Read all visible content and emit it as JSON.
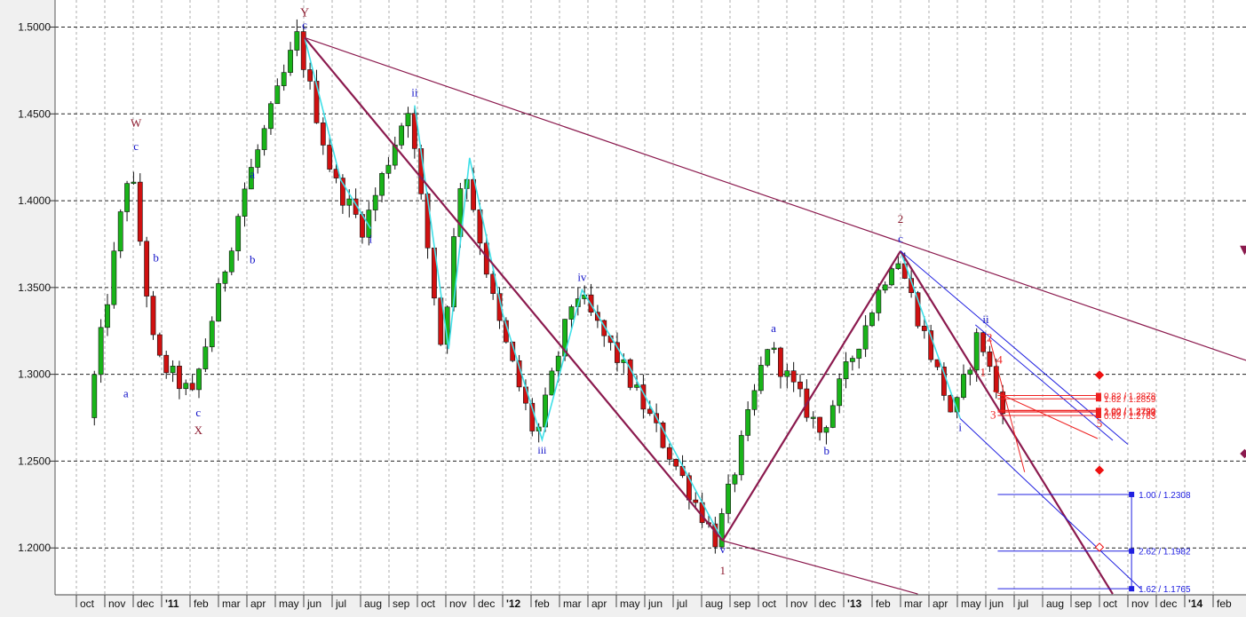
{
  "chart_data": {
    "type": "candlestick",
    "title": "",
    "xlabel": "",
    "ylabel": "",
    "ylim": [
      1.173,
      1.5156
    ],
    "grid": true,
    "y_ticks": [
      "1.2000",
      "1.2500",
      "1.3000",
      "1.3500",
      "1.4000",
      "1.4500",
      "1.5000"
    ],
    "x_labels": [
      {
        "i": 0,
        "label": "oct"
      },
      {
        "i": 1,
        "label": "nov"
      },
      {
        "i": 2,
        "label": "dec"
      },
      {
        "i": 3,
        "label": "'11",
        "year": true
      },
      {
        "i": 4,
        "label": "feb"
      },
      {
        "i": 5,
        "label": "mar"
      },
      {
        "i": 6,
        "label": "apr"
      },
      {
        "i": 7,
        "label": "may"
      },
      {
        "i": 8,
        "label": "jun"
      },
      {
        "i": 9,
        "label": "jul"
      },
      {
        "i": 10,
        "label": "aug"
      },
      {
        "i": 11,
        "label": "sep"
      },
      {
        "i": 12,
        "label": "oct"
      },
      {
        "i": 13,
        "label": "nov"
      },
      {
        "i": 14,
        "label": "dec"
      },
      {
        "i": 15,
        "label": "'12",
        "year": true
      },
      {
        "i": 16,
        "label": "feb"
      },
      {
        "i": 17,
        "label": "mar"
      },
      {
        "i": 18,
        "label": "apr"
      },
      {
        "i": 19,
        "label": "may"
      },
      {
        "i": 20,
        "label": "jun"
      },
      {
        "i": 21,
        "label": "jul"
      },
      {
        "i": 22,
        "label": "aug"
      },
      {
        "i": 23,
        "label": "sep"
      },
      {
        "i": 24,
        "label": "oct"
      },
      {
        "i": 25,
        "label": "nov"
      },
      {
        "i": 26,
        "label": "dec"
      },
      {
        "i": 27,
        "label": "'13",
        "year": true
      },
      {
        "i": 28,
        "label": "feb"
      },
      {
        "i": 29,
        "label": "mar"
      },
      {
        "i": 30,
        "label": "apr"
      },
      {
        "i": 31,
        "label": "may"
      },
      {
        "i": 32,
        "label": "jun"
      },
      {
        "i": 33,
        "label": "jul"
      },
      {
        "i": 34,
        "label": "aug"
      },
      {
        "i": 35,
        "label": "sep"
      },
      {
        "i": 36,
        "label": "oct"
      },
      {
        "i": 37,
        "label": "nov"
      },
      {
        "i": 38,
        "label": "dec"
      },
      {
        "i": 39,
        "label": "'14",
        "year": true
      },
      {
        "i": 40,
        "label": "feb"
      }
    ],
    "anchors": [
      {
        "x": "2010-09-20",
        "y": 1.275
      },
      {
        "x": "2010-11-04",
        "y": 1.423
      },
      {
        "x": "2010-12-01",
        "y": 1.31
      },
      {
        "x": "2011-01-10",
        "y": 1.287
      },
      {
        "x": "2011-03-07",
        "y": 1.407
      },
      {
        "x": "2011-05-02",
        "y": 1.4939
      },
      {
        "x": "2011-06-10",
        "y": 1.412
      },
      {
        "x": "2011-07-12",
        "y": 1.384
      },
      {
        "x": "2011-08-29",
        "y": 1.4549
      },
      {
        "x": "2011-10-04",
        "y": 1.3146
      },
      {
        "x": "2011-10-27",
        "y": 1.4247
      },
      {
        "x": "2011-12-01",
        "y": 1.335
      },
      {
        "x": "2012-01-13",
        "y": 1.2624
      },
      {
        "x": "2012-02-24",
        "y": 1.3486
      },
      {
        "x": "2012-04-15",
        "y": 1.304
      },
      {
        "x": "2012-07-24",
        "y": 1.2042
      },
      {
        "x": "2012-09-17",
        "y": 1.3172
      },
      {
        "x": "2012-11-13",
        "y": 1.2661
      },
      {
        "x": "2013-02-01",
        "y": 1.371
      },
      {
        "x": "2013-04-04",
        "y": 1.2745
      },
      {
        "x": "2013-05-01",
        "y": 1.3243
      },
      {
        "x": "2013-05-24",
        "y": 1.283
      }
    ],
    "last_date": "2013-05-24",
    "wave_labels": [
      {
        "text": "Y",
        "x": "2011-05-02",
        "y": 1.4939,
        "color": "#8b1a2e",
        "size": 14,
        "dy": -24
      },
      {
        "text": "c",
        "x": "2011-05-02",
        "y": 1.4939,
        "color": "#1010c8",
        "size": 13,
        "dy": -10
      },
      {
        "text": "W",
        "x": "2010-11-04",
        "y": 1.423,
        "color": "#8b1a2e",
        "size": 13,
        "dy": -38
      },
      {
        "text": "c",
        "x": "2010-11-04",
        "y": 1.423,
        "color": "#1010c8",
        "size": 13,
        "dy": -12
      },
      {
        "text": "a",
        "x": "2010-10-24",
        "y": 1.296,
        "color": "#1010c8",
        "size": 13,
        "dy": 18
      },
      {
        "text": "b",
        "x": "2010-11-25",
        "y": 1.36,
        "color": "#1010c8",
        "size": 13,
        "dy": -10
      },
      {
        "text": "c",
        "x": "2011-01-10",
        "y": 1.287,
        "color": "#1010c8",
        "size": 13,
        "dy": 22
      },
      {
        "text": "X",
        "x": "2011-01-10",
        "y": 1.287,
        "color": "#8b1a2e",
        "size": 13,
        "dy": 42
      },
      {
        "text": "a",
        "x": "2011-03-07",
        "y": 1.407,
        "color": "#1010c8",
        "size": 13,
        "dy": -12
      },
      {
        "text": "b",
        "x": "2011-03-07",
        "y": 1.37,
        "color": "#1010c8",
        "size": 13,
        "dy": 12
      },
      {
        "text": "i",
        "x": "2011-07-12",
        "y": 1.384,
        "color": "#1010c8",
        "size": 13,
        "dy": 16
      },
      {
        "text": "ii",
        "x": "2011-08-29",
        "y": 1.4549,
        "color": "#1010c8",
        "size": 13,
        "dy": -10
      },
      {
        "text": "iii",
        "x": "2012-01-13",
        "y": 1.2624,
        "color": "#1010c8",
        "size": 12,
        "dy": 16
      },
      {
        "text": "iv",
        "x": "2012-02-24",
        "y": 1.3486,
        "color": "#1010c8",
        "size": 13,
        "dy": -10
      },
      {
        "text": "v",
        "x": "2012-07-24",
        "y": 1.2042,
        "color": "#1010c8",
        "size": 13,
        "dy": 14
      },
      {
        "text": "1",
        "x": "2012-07-24",
        "y": 1.2042,
        "color": "#8b1a2e",
        "size": 13,
        "dy": 38
      },
      {
        "text": "a",
        "x": "2012-09-17",
        "y": 1.3172,
        "color": "#1010c8",
        "size": 13,
        "dy": -14
      },
      {
        "text": "b",
        "x": "2012-11-13",
        "y": 1.2661,
        "color": "#1010c8",
        "size": 13,
        "dy": 24
      },
      {
        "text": "2",
        "x": "2013-02-01",
        "y": 1.371,
        "color": "#8b1a2e",
        "size": 13,
        "dy": -32
      },
      {
        "text": "c",
        "x": "2013-02-01",
        "y": 1.371,
        "color": "#1010c8",
        "size": 13,
        "dy": -10
      },
      {
        "text": "i",
        "x": "2013-04-04",
        "y": 1.2745,
        "color": "#1010c8",
        "size": 13,
        "dy": 14
      },
      {
        "text": "ii",
        "x": "2013-05-01",
        "y": 1.3243,
        "color": "#1010c8",
        "size": 13,
        "dy": -10
      },
      {
        "text": "2",
        "x": "2013-05-05",
        "y": 1.321,
        "color": "#ee2020",
        "size": 13,
        "dy": 4
      },
      {
        "text": "1",
        "x": "2013-04-28",
        "y": 1.301,
        "color": "#ee2020",
        "size": 13,
        "dy": 4
      },
      {
        "text": "4",
        "x": "2013-05-16",
        "y": 1.3053,
        "color": "#ee2020",
        "size": 13,
        "dy": -2
      },
      {
        "text": "3",
        "x": "2013-05-09",
        "y": 1.2766,
        "color": "#ee2020",
        "size": 13,
        "dy": 4
      },
      {
        "text": "5",
        "x": "2013-09-01",
        "y": 1.2696,
        "color": "#ee2020",
        "size": 13,
        "dy": 0
      }
    ],
    "wave_paths": [
      {
        "name": "wave-path-c-to-i",
        "color": "#3fe0e8",
        "width": 1.6,
        "points": [
          [
            "2011-05-02",
            1.4939
          ],
          [
            "2011-06-10",
            1.412
          ],
          [
            "2011-07-12",
            1.384
          ]
        ]
      },
      {
        "name": "wave-path-ii-to-iii",
        "color": "#3fe0e8",
        "width": 1.6,
        "points": [
          [
            "2011-08-29",
            1.4549
          ],
          [
            "2011-10-04",
            1.3146
          ],
          [
            "2011-10-27",
            1.4247
          ],
          [
            "2011-12-01",
            1.335
          ],
          [
            "2012-01-13",
            1.2624
          ],
          [
            "2012-02-24",
            1.3486
          ],
          [
            "2012-04-15",
            1.304
          ],
          [
            "2012-07-24",
            1.2042
          ]
        ]
      },
      {
        "name": "wave-path-2-to-i",
        "color": "#3fe0e8",
        "width": 1.6,
        "points": [
          [
            "2013-02-01",
            1.371
          ],
          [
            "2013-04-04",
            1.2745
          ]
        ]
      }
    ],
    "trend_lines": [
      {
        "name": "upper-trendline",
        "color": "#8b1a4e",
        "width": 1.2,
        "from": [
          "2011-05-02",
          1.4939
        ],
        "to": [
          "2014-02-28",
          1.3035
        ]
      },
      {
        "name": "wave-1-channel-upper",
        "color": "#8b1a4e",
        "width": 2.2,
        "from": [
          "2011-05-02",
          1.4939
        ],
        "to": [
          "2012-07-24",
          1.2042
        ]
      },
      {
        "name": "wave-1-channel-base",
        "color": "#8b1a4e",
        "width": 1.2,
        "from": [
          "2012-07-24",
          1.2042
        ],
        "to": [
          "2013-02-18",
          1.1735
        ]
      },
      {
        "name": "wave-2-rise-line",
        "color": "#8b1a4e",
        "width": 2.2,
        "from": [
          "2012-07-24",
          1.2042
        ],
        "to": [
          "2013-02-01",
          1.371
        ]
      },
      {
        "name": "wave-3-projection-line",
        "color": "#8b1a4e",
        "width": 2.2,
        "from": [
          "2013-02-01",
          1.371
        ],
        "to": [
          "2013-09-15",
          1.1735
        ]
      },
      {
        "name": "blue-channel-upper",
        "color": "#2020e0",
        "width": 1.0,
        "from": [
          "2013-02-01",
          1.371
        ],
        "to": [
          "2013-10-01",
          1.2597
        ]
      },
      {
        "name": "blue-channel-upper-2",
        "color": "#2020e0",
        "width": 1.0,
        "from": [
          "2013-04-20",
          1.3285
        ],
        "to": [
          "2013-09-15",
          1.262
        ]
      },
      {
        "name": "blue-channel-lower",
        "color": "#2020e0",
        "width": 1.0,
        "from": [
          "2013-04-04",
          1.2745
        ],
        "to": [
          "2013-10-15",
          1.1765
        ]
      },
      {
        "name": "red-channel-line",
        "color": "#ee2020",
        "width": 1.0,
        "from": [
          "2013-05-05",
          1.321
        ],
        "to": [
          "2013-06-12",
          1.2437
        ]
      },
      {
        "name": "red-channel-line-2",
        "color": "#ee2020",
        "width": 1.0,
        "from": [
          "2013-05-09",
          1.2905
        ],
        "to": [
          "2013-08-30",
          1.263
        ]
      }
    ],
    "red_levels": [
      {
        "y": 1.2878,
        "label": "0.82 / 1.2878"
      },
      {
        "y": 1.2859,
        "label": "1.62 / 1.2859"
      },
      {
        "y": 1.2792,
        "label": "1.00 / 1.2792"
      },
      {
        "y": 1.279,
        "label": "1.00 / 1.2790"
      },
      {
        "y": 1.2783,
        "label": "2.62 / 1.2783"
      },
      {
        "y": 1.2763,
        "label": "0.62 / 1.2763"
      }
    ],
    "red_levels_range": [
      "2013-05-14",
      "2013-08-31"
    ],
    "blue_levels": [
      {
        "y": 1.2308,
        "label": "1.00 / 1.2308"
      },
      {
        "y": 1.1982,
        "label": "2.62 / 1.1982"
      },
      {
        "y": 1.1765,
        "label": "1.62 / 1.1765"
      }
    ],
    "blue_levels_range": [
      "2013-05-14",
      "2013-10-05"
    ],
    "markers": [
      {
        "x": "2013-09-01",
        "y": 1.2996,
        "type": "diamond",
        "color": "#ee1111"
      },
      {
        "x": "2013-09-01",
        "y": 1.2448,
        "type": "diamond",
        "color": "#ee1111"
      },
      {
        "x": "2013-09-01",
        "y": 1.2004,
        "type": "diamond",
        "color": "#ffffff",
        "stroke": "#ee1111"
      },
      {
        "x": "2014-02-04",
        "y": 1.3715,
        "type": "triangle-down",
        "color": "#8b1a4e"
      },
      {
        "x": "2014-02-04",
        "y": 1.2543,
        "type": "diamond",
        "color": "#8b1a4e"
      }
    ],
    "colors": {
      "background": "#ffffff",
      "frame": "#f0f0f0",
      "up_candle": "#19b419",
      "down_candle": "#d01010",
      "grid": "#222222",
      "wave_cycle": "#8b1a2e",
      "wave_sub": "#1010c8",
      "cyan_path": "#3fe0e8",
      "trend": "#8b1a4e",
      "projection_red": "#ee2020",
      "projection_blue": "#2020e0"
    }
  }
}
